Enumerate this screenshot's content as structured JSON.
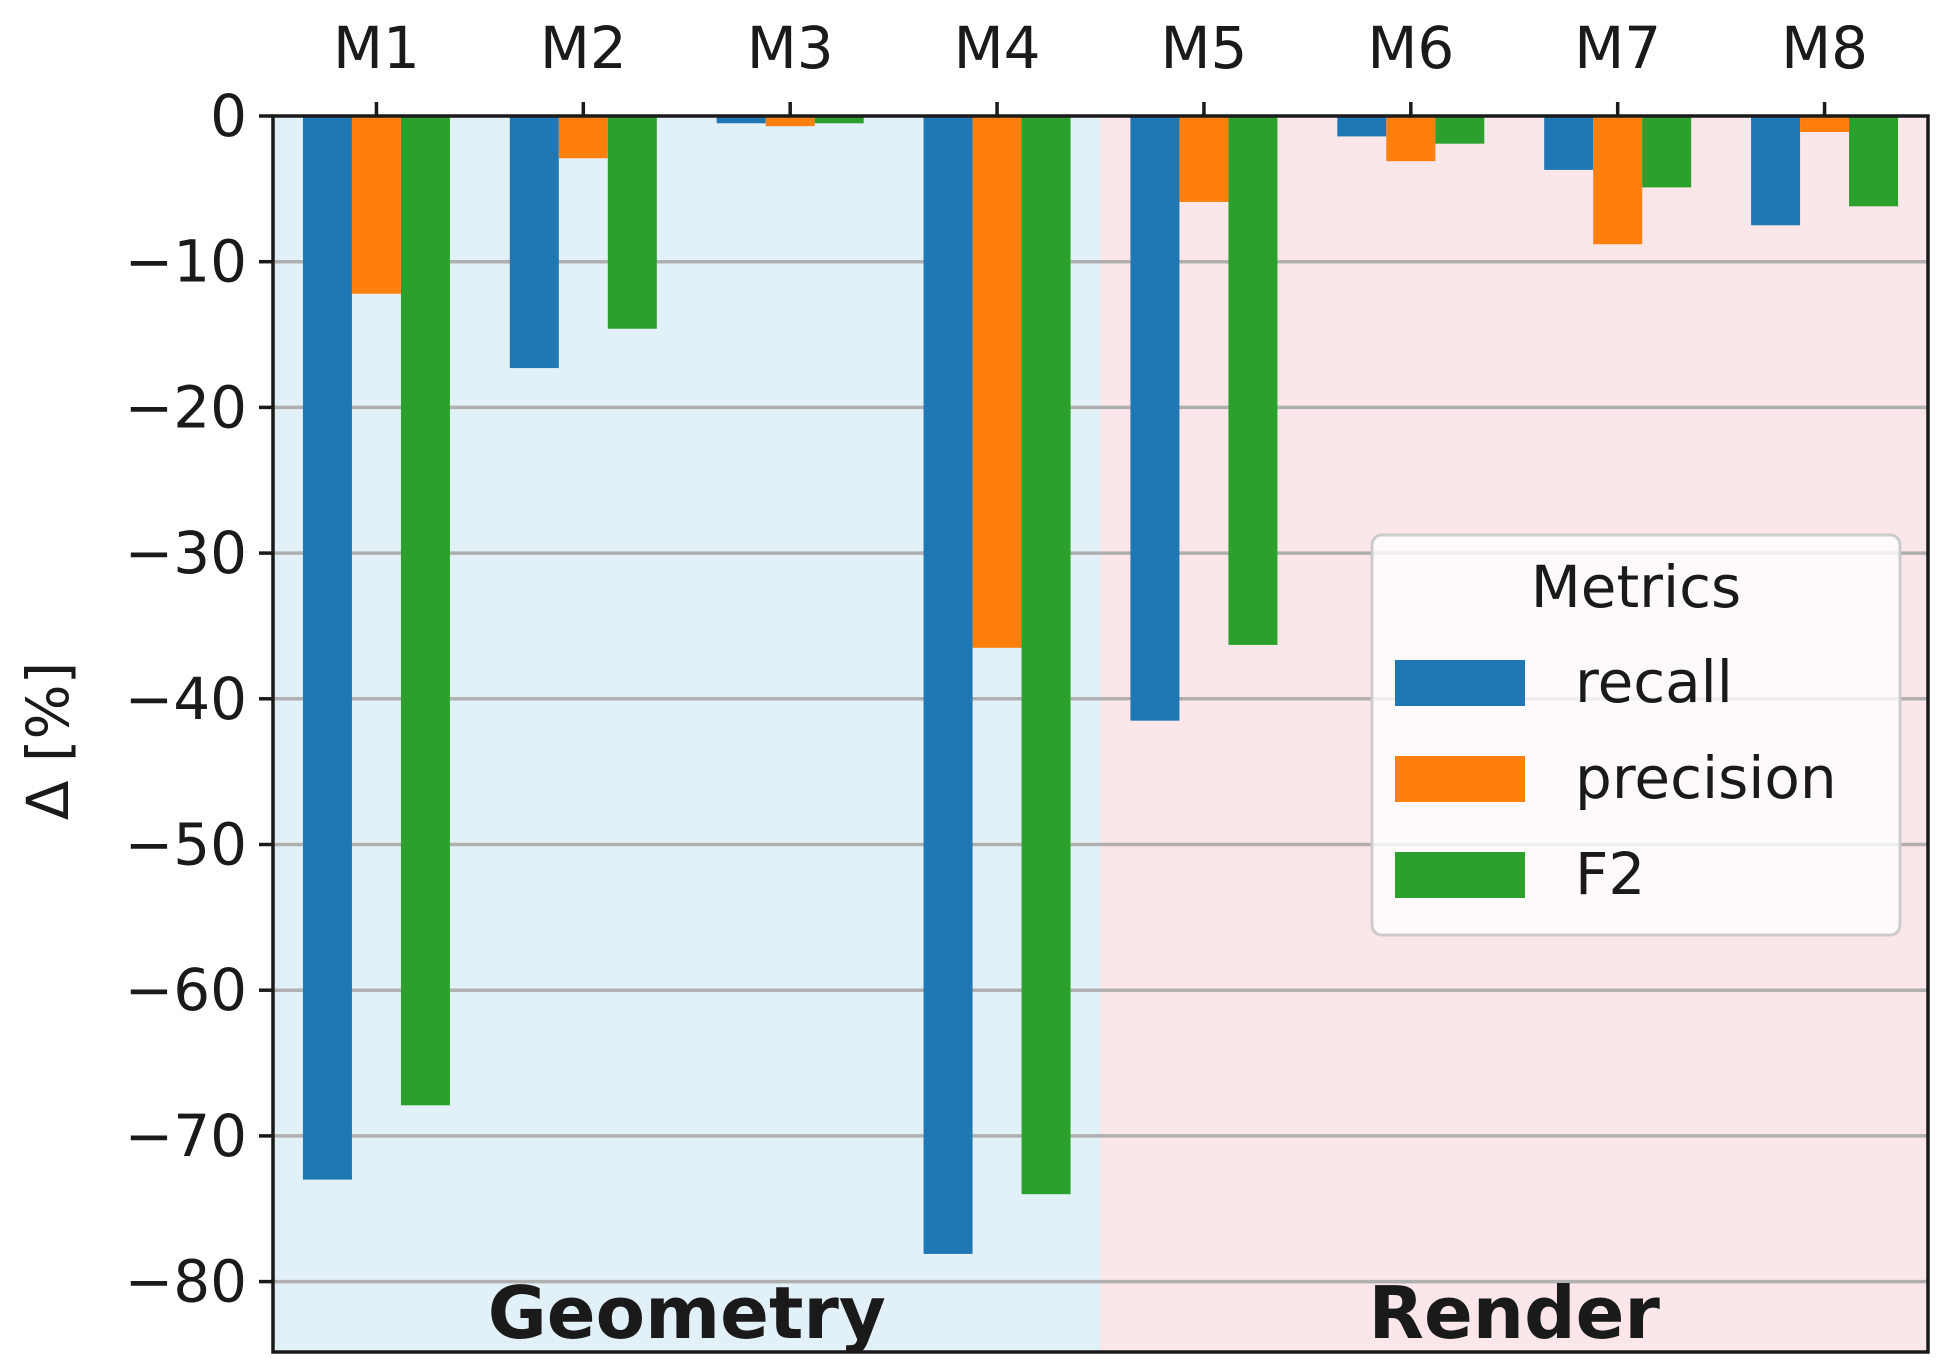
{
  "chart_data": {
    "type": "bar",
    "title": "",
    "xlabel": "",
    "ylabel": "Δ [%]",
    "categories": [
      "M1",
      "M2",
      "M3",
      "M4",
      "M5",
      "M6",
      "M7",
      "M8"
    ],
    "series": [
      {
        "name": "recall",
        "color": "#1f77b4",
        "values": [
          -73.0,
          -17.3,
          -0.5,
          -78.1,
          -41.5,
          -1.4,
          -3.7,
          -7.5
        ]
      },
      {
        "name": "precision",
        "color": "#ff7f0e",
        "values": [
          -12.2,
          -2.9,
          -0.7,
          -36.5,
          -5.9,
          -3.1,
          -8.8,
          -1.1
        ]
      },
      {
        "name": "F2",
        "color": "#2ca02c",
        "values": [
          -67.9,
          -14.6,
          -0.5,
          -74.0,
          -36.3,
          -1.9,
          -4.9,
          -6.2
        ]
      }
    ],
    "ylim": [
      -85,
      0
    ],
    "yticks": [
      0,
      -10,
      -20,
      -30,
      -40,
      -50,
      -60,
      -70,
      -80
    ],
    "ytick_labels": [
      "0",
      "−10",
      "−20",
      "−30",
      "−40",
      "−50",
      "−60",
      "−70",
      "−80"
    ],
    "regions": [
      {
        "label": "Geometry",
        "color": "#e2f0f7",
        "categories": [
          "M1",
          "M2",
          "M3",
          "M4"
        ]
      },
      {
        "label": "Render",
        "color": "#fbe6e9",
        "categories": [
          "M5",
          "M6",
          "M7",
          "M8"
        ]
      }
    ],
    "legend": {
      "title": "Metrics",
      "position": "center-right"
    },
    "grid": "horizontal",
    "xaxis_position": "top"
  }
}
